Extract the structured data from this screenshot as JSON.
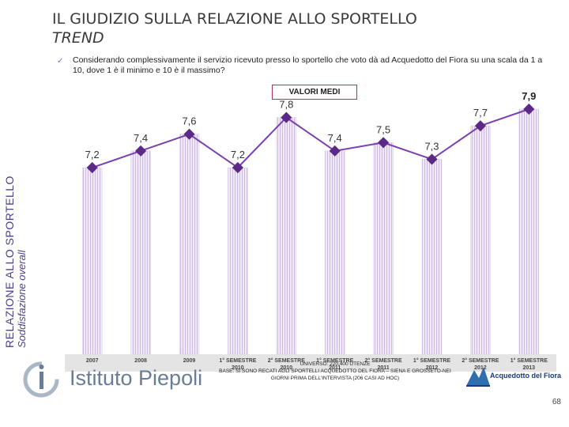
{
  "header": {
    "title_line1": "IL GIUDIZIO SULLA RELAZIONE ALLO SPORTELLO",
    "title_line2": "TREND"
  },
  "question": "Considerando complessivamente il servizio ricevuto presso lo sportello che voto dà ad Acquedotto del Fiora su una scala da 1 a 10, dove 1 è il minimo e 10 è il massimo?",
  "badge": "VALORI MEDI",
  "side_label": {
    "line1": "RELAZIONE ALLO SPORTELLO",
    "line2": "Soddisfazione overall"
  },
  "chart_data": {
    "type": "bar",
    "categories": [
      [
        "2007"
      ],
      [
        "2008"
      ],
      [
        "2009"
      ],
      [
        "1° SEMESTRE",
        "2010"
      ],
      [
        "2° SEMESTRE",
        "2010"
      ],
      [
        "1° SEMESTRE",
        "2011"
      ],
      [
        "2° SEMESTRE",
        "2011"
      ],
      [
        "1° SEMESTRE",
        "2012"
      ],
      [
        "2° SEMESTRE",
        "2012"
      ],
      [
        "1° SEMESTRE",
        "2013"
      ]
    ],
    "series": [
      {
        "name": "Valori medi",
        "values": [
          7.2,
          7.4,
          7.6,
          7.2,
          7.8,
          7.4,
          7.5,
          7.3,
          7.7,
          7.9
        ]
      }
    ],
    "value_labels": [
      "7,2",
      "7,4",
      "7,6",
      "7,2",
      "7,8",
      "7,4",
      "7,5",
      "7,3",
      "7,7",
      "7,9"
    ],
    "highlight_last_label": true,
    "bar_color": "#ece2f4",
    "bar_stripe_color": "#c9b6e0",
    "line_color": "#7a3fb0",
    "marker_color": "#5b2a86"
  },
  "footer": {
    "logo_text": "Istituto Piepoli",
    "universe": "UNIVERSO: 220.400 UTENZE",
    "base": "BASE: SI SONO RECATI AGLI SPORTELLI ACQUEDOTTO DEL FIORA – SIENA E GROSSETO-NEI GIORNI PRIMA DELL'INTERVISTA (206 CASI AD HOC)",
    "brand": "Acquedotto del Fiora",
    "page_number": "68"
  }
}
